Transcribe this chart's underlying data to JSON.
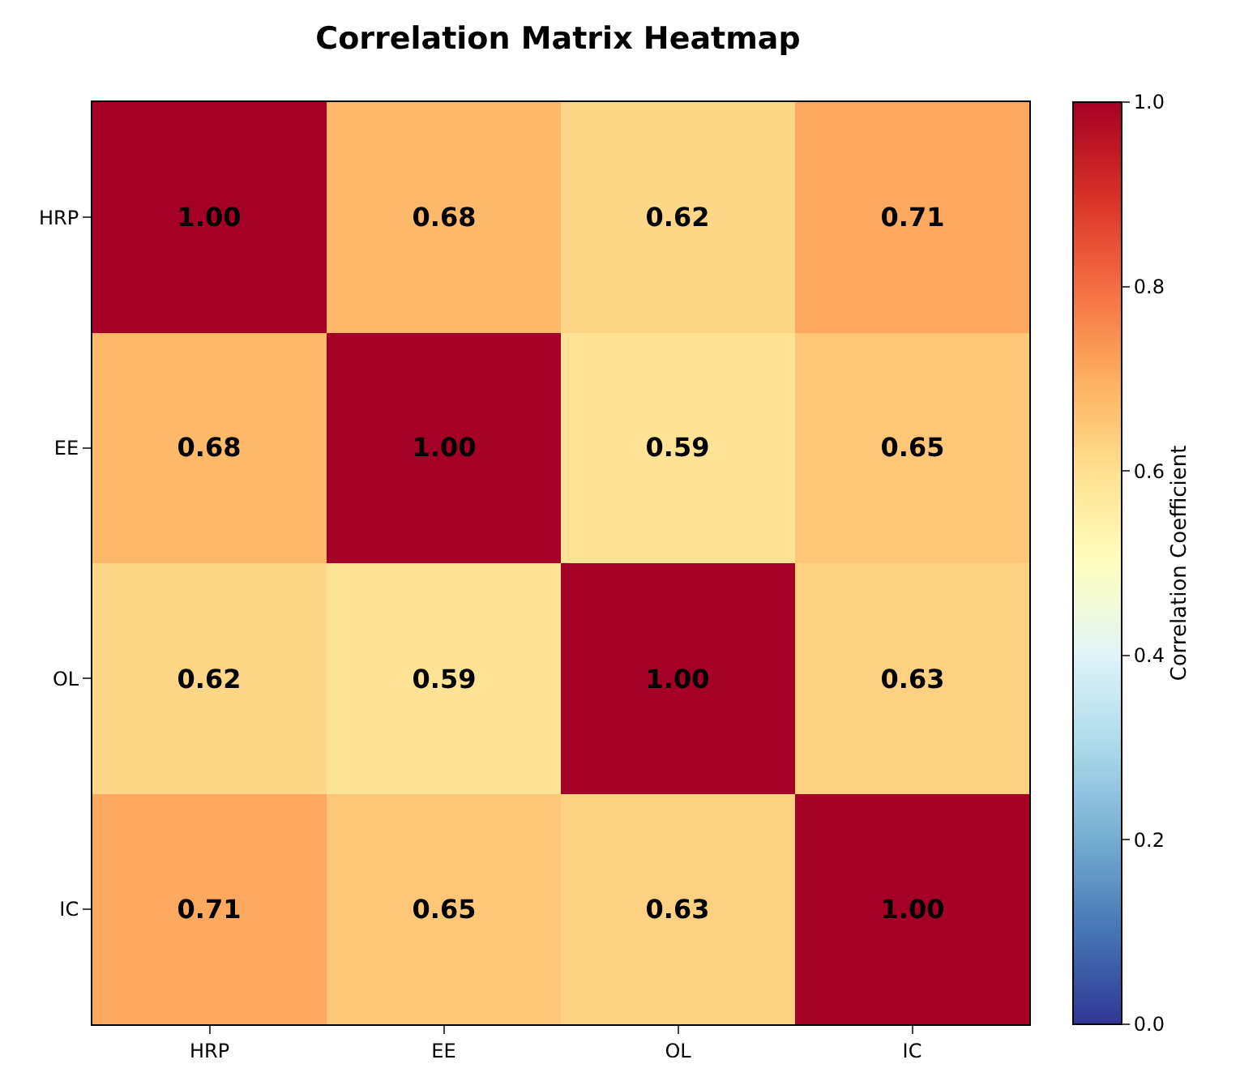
{
  "chart_data": {
    "type": "heatmap",
    "title": "Correlation Matrix Heatmap",
    "clabel": "Correlation Coefficient",
    "categories": [
      "HRP",
      "EE",
      "OL",
      "IC"
    ],
    "y_categories": [
      "HRP",
      "EE",
      "OL",
      "IC"
    ],
    "cells": [
      [
        1.0,
        0.68,
        0.62,
        0.71
      ],
      [
        0.68,
        1.0,
        0.59,
        0.65
      ],
      [
        0.62,
        0.59,
        1.0,
        0.63
      ],
      [
        0.71,
        0.65,
        0.63,
        1.0
      ]
    ],
    "cell_labels": [
      [
        "1.00",
        "0.68",
        "0.62",
        "0.71"
      ],
      [
        "0.68",
        "1.00",
        "0.59",
        "0.65"
      ],
      [
        "0.62",
        "0.59",
        "1.00",
        "0.63"
      ],
      [
        "0.71",
        "0.65",
        "0.63",
        "1.00"
      ]
    ],
    "clim": [
      0,
      1
    ],
    "cticks": [
      {
        "value": 0,
        "label": "0.0"
      },
      0.2,
      0.4,
      0.6,
      0.8,
      {
        "value": 1,
        "label": "1.0"
      }
    ]
  }
}
